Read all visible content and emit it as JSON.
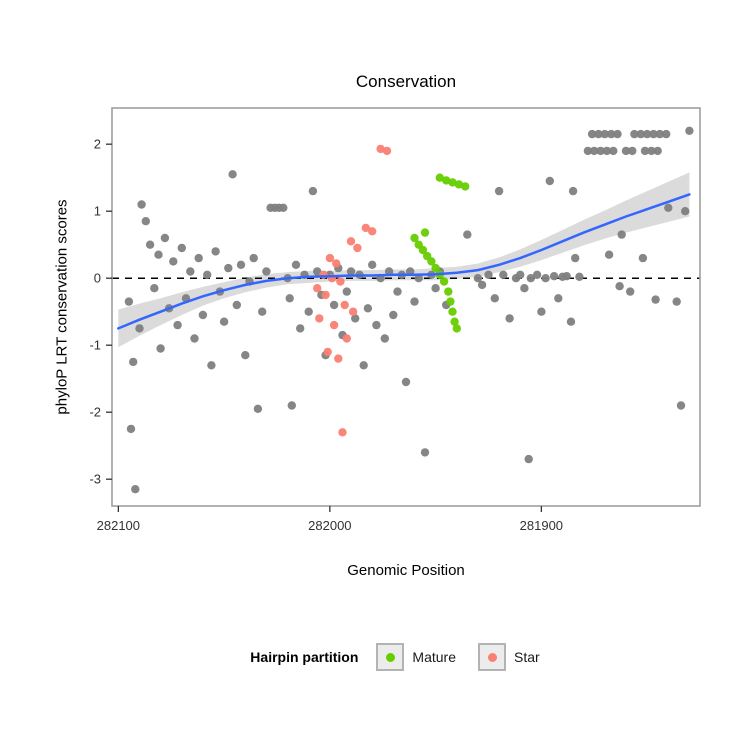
{
  "title": "Conservation",
  "x_label": "Genomic Position",
  "y_label": "phyloP LRT conservation scores",
  "legend": {
    "title": "Hairpin partition",
    "items": [
      {
        "label": "Mature",
        "color": "#66CD00"
      },
      {
        "label": "Star",
        "color": "#FA8072"
      }
    ]
  },
  "colors": {
    "other_points": "#7F7F7F",
    "smooth_line": "#3366FF",
    "confidence_band": "#999999",
    "panel_border": "#9e9e9e",
    "reference_line": "#000000"
  },
  "chart_data": {
    "type": "scatter",
    "title": "Conservation",
    "xlabel": "Genomic Position",
    "ylabel": "phyloP LRT conservation scores",
    "x_axis": {
      "ticks": [
        "282100",
        "282000",
        "281900"
      ],
      "tick_values": [
        282100,
        282000,
        281900
      ],
      "domain": [
        282103,
        281825
      ],
      "reversed": true
    },
    "y_axis": {
      "ticks": [
        "-3",
        "-2",
        "-1",
        "0",
        "1",
        "2"
      ],
      "tick_values": [
        -3,
        -2,
        -1,
        0,
        1,
        2
      ],
      "domain": [
        -3.4,
        2.54
      ]
    },
    "reference_line_y": 0,
    "grid": false,
    "legend_position": "bottom",
    "series": [
      {
        "name": "Other",
        "color": "#7F7F7F",
        "points": [
          [
            282095,
            -0.35
          ],
          [
            282094,
            -2.25
          ],
          [
            282093,
            -1.25
          ],
          [
            282092,
            -3.15
          ],
          [
            282090,
            -0.75
          ],
          [
            282089,
            1.1
          ],
          [
            282087,
            0.85
          ],
          [
            282085,
            0.5
          ],
          [
            282083,
            -0.15
          ],
          [
            282081,
            0.35
          ],
          [
            282080,
            -1.05
          ],
          [
            282078,
            0.6
          ],
          [
            282076,
            -0.45
          ],
          [
            282074,
            0.25
          ],
          [
            282072,
            -0.7
          ],
          [
            282070,
            0.45
          ],
          [
            282068,
            -0.3
          ],
          [
            282066,
            0.1
          ],
          [
            282064,
            -0.9
          ],
          [
            282062,
            0.3
          ],
          [
            282060,
            -0.55
          ],
          [
            282058,
            0.05
          ],
          [
            282056,
            -1.3
          ],
          [
            282054,
            0.4
          ],
          [
            282052,
            -0.2
          ],
          [
            282050,
            -0.65
          ],
          [
            282048,
            0.15
          ],
          [
            282046,
            1.55
          ],
          [
            282044,
            -0.4
          ],
          [
            282042,
            0.2
          ],
          [
            282040,
            -1.15
          ],
          [
            282038,
            -0.05
          ],
          [
            282036,
            0.3
          ],
          [
            282034,
            -1.95
          ],
          [
            282032,
            -0.5
          ],
          [
            282030,
            0.1
          ],
          [
            282018,
            -1.9
          ],
          [
            282028,
            1.05
          ],
          [
            282026,
            1.05
          ],
          [
            282024,
            1.05
          ],
          [
            282022,
            1.05
          ],
          [
            282020,
            0.0
          ],
          [
            282019,
            -0.3
          ],
          [
            282016,
            0.2
          ],
          [
            282014,
            -0.75
          ],
          [
            282012,
            0.05
          ],
          [
            282010,
            -0.5
          ],
          [
            282008,
            1.3
          ],
          [
            282006,
            0.1
          ],
          [
            282004,
            -0.25
          ],
          [
            282002,
            -1.15
          ],
          [
            282000,
            0.05
          ],
          [
            281998,
            -0.4
          ],
          [
            281996,
            0.15
          ],
          [
            281994,
            -0.85
          ],
          [
            281992,
            -0.2
          ],
          [
            281990,
            0.1
          ],
          [
            281988,
            -0.6
          ],
          [
            281986,
            0.05
          ],
          [
            281984,
            -1.3
          ],
          [
            281982,
            -0.45
          ],
          [
            281980,
            0.2
          ],
          [
            281978,
            -0.7
          ],
          [
            281976,
            0.0
          ],
          [
            281974,
            -0.9
          ],
          [
            281972,
            0.1
          ],
          [
            281970,
            -0.55
          ],
          [
            281968,
            -0.2
          ],
          [
            281966,
            0.05
          ],
          [
            281964,
            -1.55
          ],
          [
            281962,
            0.1
          ],
          [
            281960,
            -0.35
          ],
          [
            281958,
            0.0
          ],
          [
            281955,
            -2.6
          ],
          [
            281952,
            0.05
          ],
          [
            281950,
            -0.15
          ],
          [
            281948,
            0.1
          ],
          [
            281945,
            -0.4
          ],
          [
            281935,
            0.65
          ],
          [
            281930,
            0.0
          ],
          [
            281928,
            -0.1
          ],
          [
            281925,
            0.05
          ],
          [
            281922,
            -0.3
          ],
          [
            281920,
            1.3
          ],
          [
            281918,
            0.05
          ],
          [
            281915,
            -0.6
          ],
          [
            281912,
            0.0
          ],
          [
            281910,
            0.05
          ],
          [
            281906,
            -2.7
          ],
          [
            281908,
            -0.15
          ],
          [
            281905,
            0.0
          ],
          [
            281902,
            0.05
          ],
          [
            281900,
            -0.5
          ],
          [
            281898,
            0.0
          ],
          [
            281896,
            1.45
          ],
          [
            281894,
            0.03
          ],
          [
            281892,
            -0.3
          ],
          [
            281890,
            0.02
          ],
          [
            281888,
            0.03
          ],
          [
            281886,
            -0.65
          ],
          [
            281884,
            0.3
          ],
          [
            281882,
            0.02
          ],
          [
            281868,
            0.35
          ],
          [
            281863,
            -0.12
          ],
          [
            281846,
            -0.32
          ],
          [
            281878,
            1.9
          ],
          [
            281875,
            1.9
          ],
          [
            281872,
            1.9
          ],
          [
            281869,
            1.9
          ],
          [
            281866,
            1.9
          ],
          [
            281860,
            1.9
          ],
          [
            281857,
            1.9
          ],
          [
            281851,
            1.9
          ],
          [
            281848,
            1.9
          ],
          [
            281845,
            1.9
          ],
          [
            281876,
            2.15
          ],
          [
            281873,
            2.15
          ],
          [
            281870,
            2.15
          ],
          [
            281867,
            2.15
          ],
          [
            281864,
            2.15
          ],
          [
            281856,
            2.15
          ],
          [
            281853,
            2.15
          ],
          [
            281850,
            2.15
          ],
          [
            281847,
            2.15
          ],
          [
            281844,
            2.15
          ],
          [
            281841,
            2.15
          ],
          [
            281830,
            2.2
          ],
          [
            281885,
            1.3
          ],
          [
            281862,
            0.65
          ],
          [
            281858,
            -0.2
          ],
          [
            281852,
            0.3
          ],
          [
            281840,
            1.05
          ],
          [
            281836,
            -0.35
          ],
          [
            281834,
            -1.9
          ],
          [
            281832,
            1.0
          ]
        ]
      },
      {
        "name": "Mature",
        "color": "#66CD00",
        "points": [
          [
            281948,
            1.5
          ],
          [
            281945,
            1.46
          ],
          [
            281942,
            1.43
          ],
          [
            281939,
            1.4
          ],
          [
            281936,
            1.37
          ],
          [
            281960,
            0.6
          ],
          [
            281955,
            0.68
          ],
          [
            281958,
            0.5
          ],
          [
            281956,
            0.42
          ],
          [
            281954,
            0.33
          ],
          [
            281952,
            0.25
          ],
          [
            281950,
            0.15
          ],
          [
            281948,
            0.05
          ],
          [
            281946,
            -0.05
          ],
          [
            281944,
            -0.2
          ],
          [
            281943,
            -0.35
          ],
          [
            281942,
            -0.5
          ],
          [
            281941,
            -0.65
          ],
          [
            281940,
            -0.75
          ]
        ]
      },
      {
        "name": "Star",
        "color": "#FA8072",
        "points": [
          [
            281976,
            1.93
          ],
          [
            281973,
            1.9
          ],
          [
            281983,
            0.75
          ],
          [
            281980,
            0.7
          ],
          [
            281990,
            0.55
          ],
          [
            281987,
            0.45
          ],
          [
            282000,
            0.3
          ],
          [
            281997,
            0.22
          ],
          [
            282003,
            0.05
          ],
          [
            281999,
            0.0
          ],
          [
            281995,
            -0.05
          ],
          [
            282006,
            -0.15
          ],
          [
            282002,
            -0.25
          ],
          [
            281993,
            -0.4
          ],
          [
            281989,
            -0.5
          ],
          [
            282005,
            -0.6
          ],
          [
            281998,
            -0.7
          ],
          [
            281992,
            -0.9
          ],
          [
            282001,
            -1.1
          ],
          [
            281996,
            -1.2
          ],
          [
            281994,
            -2.3
          ]
        ]
      }
    ],
    "smooth": {
      "color": "#3366FF",
      "x": [
        282100,
        282090,
        282080,
        282070,
        282060,
        282050,
        282040,
        282030,
        282020,
        282010,
        282000,
        281990,
        281980,
        281970,
        281960,
        281950,
        281940,
        281930,
        281920,
        281910,
        281900,
        281890,
        281880,
        281870,
        281860,
        281850,
        281840,
        281830
      ],
      "y": [
        -0.75,
        -0.62,
        -0.5,
        -0.38,
        -0.27,
        -0.18,
        -0.1,
        -0.04,
        0.0,
        0.02,
        0.03,
        0.04,
        0.04,
        0.05,
        0.05,
        0.06,
        0.08,
        0.12,
        0.2,
        0.3,
        0.42,
        0.55,
        0.68,
        0.8,
        0.92,
        1.03,
        1.14,
        1.25
      ],
      "band_halfwidth": [
        0.28,
        0.24,
        0.2,
        0.17,
        0.14,
        0.12,
        0.11,
        0.1,
        0.09,
        0.09,
        0.08,
        0.08,
        0.08,
        0.08,
        0.08,
        0.09,
        0.09,
        0.1,
        0.11,
        0.13,
        0.15,
        0.17,
        0.19,
        0.21,
        0.24,
        0.27,
        0.3,
        0.33
      ]
    }
  }
}
